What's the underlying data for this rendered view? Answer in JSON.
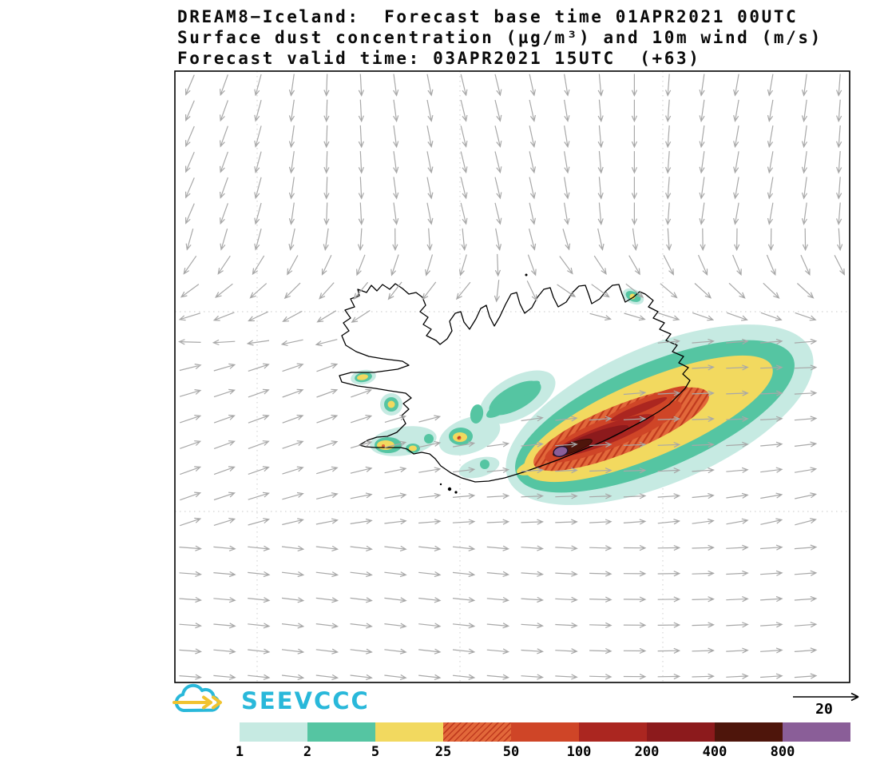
{
  "title": {
    "line1": "DREAM8−Iceland:  Forecast base time 01APR2021 00UTC",
    "line2": "Surface dust concentration (µg/m³) and 10m wind (m/s)",
    "line3": "Forecast valid time: 03APR2021 15UTC  (+63)"
  },
  "logo": {
    "text": "SEEVCCC",
    "color": "#29b8da",
    "arrow_color": "#f0c330"
  },
  "wind_ref": {
    "label": "20"
  },
  "colorbar": {
    "unit": "µg/m³",
    "labels": [
      "1",
      "2",
      "5",
      "25",
      "50",
      "100",
      "200",
      "400",
      "800"
    ],
    "segments": [
      {
        "value": 1,
        "color": "#c6eae2"
      },
      {
        "value": 2,
        "color": "#55c5a2"
      },
      {
        "value": 5,
        "color": "#f2d95f"
      },
      {
        "value": 25,
        "color": "#e2683a",
        "hatch": true,
        "hatch_color": "#c03a1e"
      },
      {
        "value": 50,
        "color": "#cf4527"
      },
      {
        "value": 100,
        "color": "#ab2620"
      },
      {
        "value": 200,
        "color": "#8c1a1c"
      },
      {
        "value": 400,
        "color": "#4e150b"
      },
      {
        "value": 800,
        "color": "#8a5e98"
      }
    ]
  },
  "map": {
    "wind_color": "#a8a8a8",
    "coast_color": "#000000",
    "grid_color": "#c8c8c8"
  }
}
